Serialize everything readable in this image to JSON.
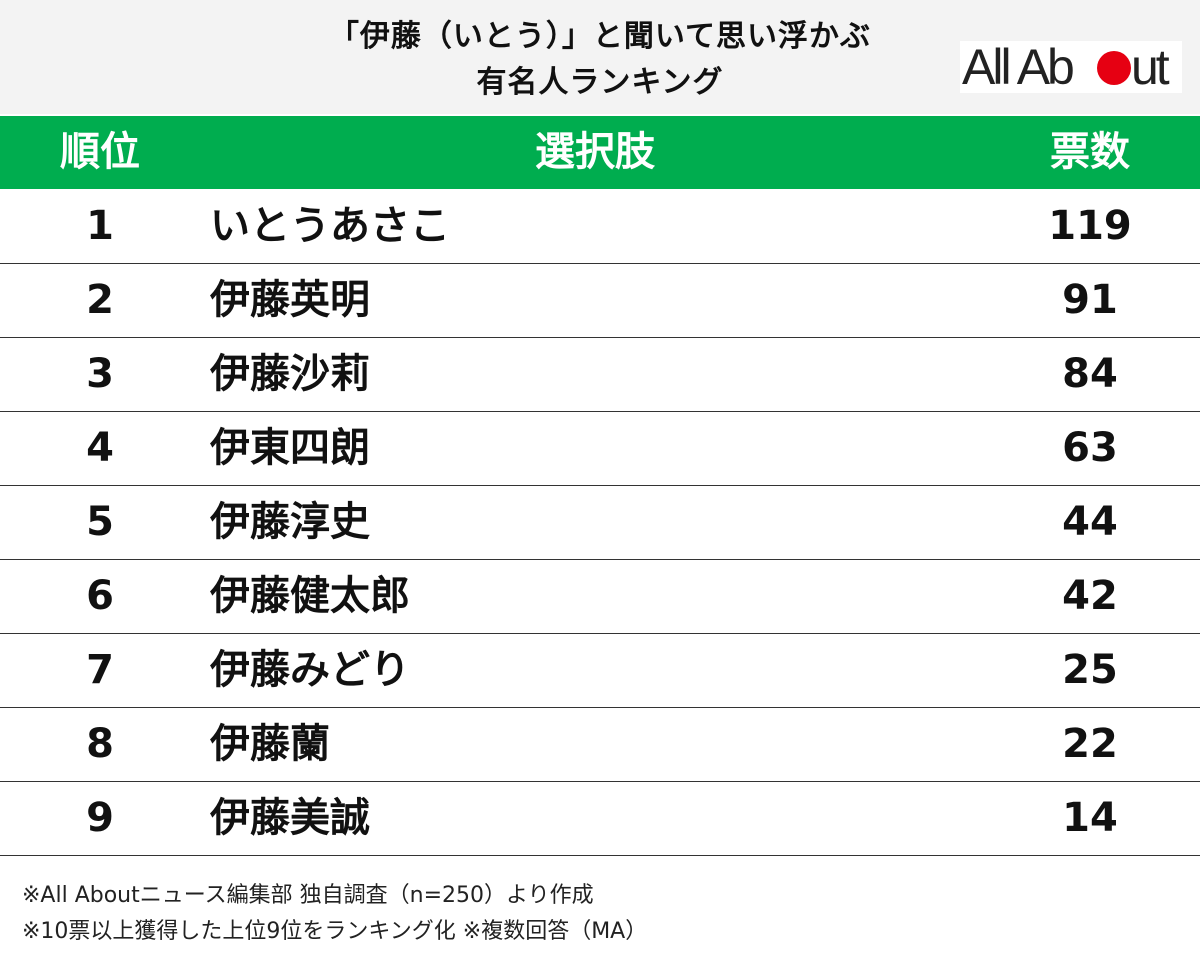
{
  "header": {
    "title_line1": "「伊藤（いとう）」と聞いて思い浮かぶ",
    "title_line2": "有名人ランキング",
    "logo_text": "All About",
    "logo_color": "#222222",
    "logo_accent": "#e60012"
  },
  "table": {
    "header_color": "#00ad4f",
    "columns": {
      "rank": "順位",
      "choice": "選択肢",
      "votes": "票数"
    },
    "rows": [
      {
        "rank": "1",
        "name": "いとうあさこ",
        "votes": "119"
      },
      {
        "rank": "2",
        "name": "伊藤英明",
        "votes": "91"
      },
      {
        "rank": "3",
        "name": "伊藤沙莉",
        "votes": "84"
      },
      {
        "rank": "4",
        "name": "伊東四朗",
        "votes": "63"
      },
      {
        "rank": "5",
        "name": "伊藤淳史",
        "votes": "44"
      },
      {
        "rank": "6",
        "name": "伊藤健太郎",
        "votes": "42"
      },
      {
        "rank": "7",
        "name": "伊藤みどり",
        "votes": "25"
      },
      {
        "rank": "8",
        "name": "伊藤蘭",
        "votes": "22"
      },
      {
        "rank": "9",
        "name": "伊藤美誠",
        "votes": "14"
      }
    ]
  },
  "footer": {
    "note1": "※All Aboutニュース編集部 独自調査（n=250）より作成",
    "note2": "※10票以上獲得した上位9位をランキング化 ※複数回答（MA）"
  }
}
